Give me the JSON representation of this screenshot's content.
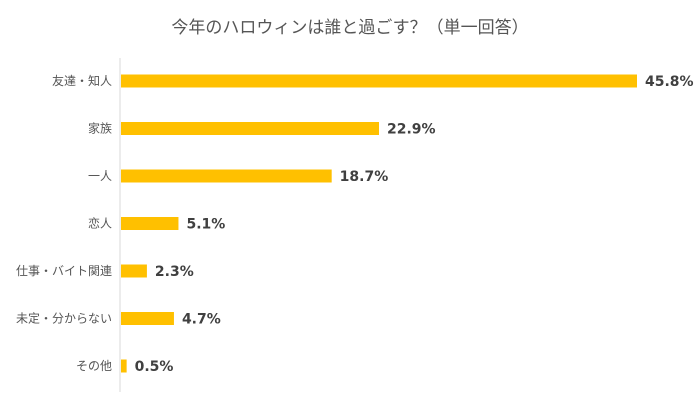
{
  "chart_data": {
    "type": "bar",
    "orientation": "horizontal",
    "title": "今年のハロウィンは誰と過ごす？（単一回答）",
    "categories": [
      "友達・知人",
      "家族",
      "一人",
      "恋人",
      "仕事・バイト関連",
      "未定・分からない",
      "その他"
    ],
    "values": [
      45.8,
      22.9,
      18.7,
      5.1,
      2.3,
      4.7,
      0.5
    ],
    "value_labels": [
      "45.8%",
      "22.9%",
      "18.7%",
      "5.1%",
      "2.3%",
      "4.7%",
      "0.5%"
    ],
    "xlim": [
      0,
      45.8
    ],
    "grid": false,
    "legend": "none",
    "colors": {
      "bar": "#FFC000",
      "axis": "#D9D9D9"
    }
  }
}
